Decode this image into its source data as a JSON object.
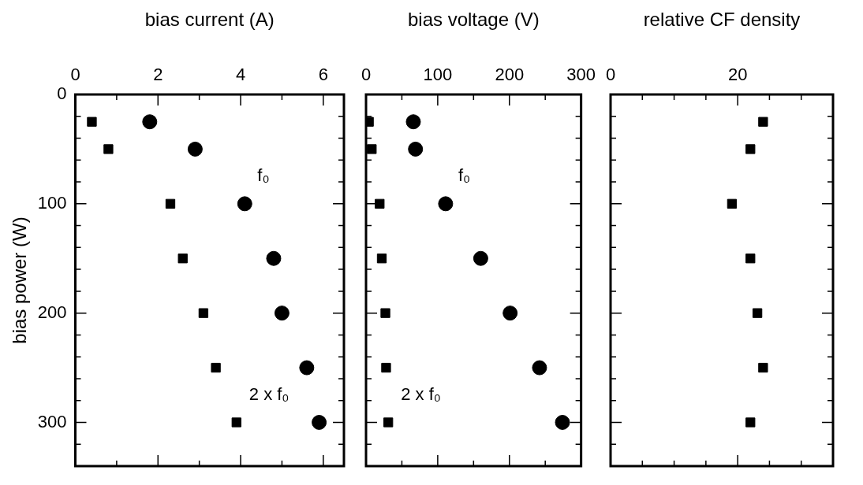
{
  "chart_data": [
    {
      "type": "scatter",
      "xlabel": "bias current (A)",
      "ylabel": "bias power (W)",
      "ylim": [
        340,
        0
      ],
      "yticks": [
        0,
        {
          "value": 20,
          "label": null
        },
        {
          "value": 40,
          "label": null
        },
        {
          "value": 60,
          "label": null
        },
        {
          "value": 80,
          "label": null
        },
        100,
        {
          "value": 120,
          "label": null
        },
        {
          "value": 140,
          "label": null
        },
        {
          "value": 160,
          "label": null
        },
        {
          "value": 180,
          "label": null
        },
        200,
        {
          "value": 220,
          "label": null
        },
        {
          "value": 240,
          "label": null
        },
        {
          "value": 260,
          "label": null
        },
        {
          "value": 280,
          "label": null
        },
        300,
        {
          "value": 320,
          "label": null
        }
      ],
      "xlim": [
        0,
        6.5
      ],
      "xticks": [
        0,
        {
          "value": 1,
          "label": null
        },
        2,
        {
          "value": 3,
          "label": null
        },
        4,
        {
          "value": 5,
          "label": null
        },
        6
      ],
      "series": [
        {
          "name": "f₀",
          "color": "#000000",
          "marker": "circle",
          "x": [
            1.8,
            2.9,
            4.1,
            4.8,
            5.0,
            5.6,
            5.9
          ],
          "values": [
            25,
            50,
            100,
            150,
            200,
            250,
            300
          ]
        },
        {
          "name": "2 x f₀",
          "color": "#000000",
          "marker": "square",
          "x": [
            0.4,
            0.8,
            2.3,
            2.6,
            3.1,
            3.4,
            3.9
          ],
          "values": [
            25,
            50,
            100,
            150,
            200,
            250,
            300
          ]
        }
      ]
    },
    {
      "type": "scatter",
      "xlabel": "bias voltage (V)",
      "tick_labels": "x",
      "ylim": [
        340,
        0
      ],
      "yticks": [
        0,
        {
          "value": 20,
          "label": null
        },
        {
          "value": 40,
          "label": null
        },
        {
          "value": 60,
          "label": null
        },
        {
          "value": 80,
          "label": null
        },
        100,
        {
          "value": 120,
          "label": null
        },
        {
          "value": 140,
          "label": null
        },
        {
          "value": 160,
          "label": null
        },
        {
          "value": 180,
          "label": null
        },
        200,
        {
          "value": 220,
          "label": null
        },
        {
          "value": 240,
          "label": null
        },
        {
          "value": 260,
          "label": null
        },
        {
          "value": 280,
          "label": null
        },
        300,
        {
          "value": 320,
          "label": null
        }
      ],
      "xlim": [
        0,
        300
      ],
      "xticks": [
        0,
        {
          "value": 50,
          "label": null
        },
        100,
        {
          "value": 150,
          "label": null
        },
        200,
        {
          "value": 250,
          "label": null
        },
        300
      ],
      "series": [
        {
          "name": "f₀",
          "color": "#000000",
          "marker": "circle",
          "x": [
            66,
            69,
            111,
            160,
            201,
            242,
            274
          ],
          "values": [
            25,
            50,
            100,
            150,
            200,
            250,
            300
          ]
        },
        {
          "name": "2 x f₀",
          "color": "#000000",
          "marker": "square",
          "x": [
            4,
            8,
            19,
            22,
            27,
            28,
            31
          ],
          "values": [
            25,
            50,
            100,
            150,
            200,
            250,
            300
          ]
        }
      ]
    },
    {
      "type": "scatter",
      "xlabel": "relative CF density",
      "tick_labels": "x",
      "ylim": [
        340,
        0
      ],
      "yticks": [
        0,
        {
          "value": 20,
          "label": null
        },
        {
          "value": 40,
          "label": null
        },
        {
          "value": 60,
          "label": null
        },
        {
          "value": 80,
          "label": null
        },
        100,
        {
          "value": 120,
          "label": null
        },
        {
          "value": 140,
          "label": null
        },
        {
          "value": 160,
          "label": null
        },
        {
          "value": 180,
          "label": null
        },
        200,
        {
          "value": 220,
          "label": null
        },
        {
          "value": 240,
          "label": null
        },
        {
          "value": 260,
          "label": null
        },
        {
          "value": 280,
          "label": null
        },
        300,
        {
          "value": 320,
          "label": null
        }
      ],
      "xlim": [
        0,
        35
      ],
      "xticks": [
        0,
        {
          "value": 5,
          "label": null
        },
        {
          "value": 10,
          "label": null
        },
        {
          "value": 15,
          "label": null
        },
        20,
        {
          "value": 25,
          "label": null
        },
        {
          "value": 30,
          "label": null
        }
      ],
      "series": [
        {
          "color": "#000000",
          "marker": "square",
          "x": [
            24.0,
            22.0,
            19.1,
            22.0,
            23.1,
            24.0,
            22.0
          ],
          "values": [
            25,
            50,
            100,
            150,
            200,
            250,
            300
          ]
        }
      ]
    }
  ]
}
